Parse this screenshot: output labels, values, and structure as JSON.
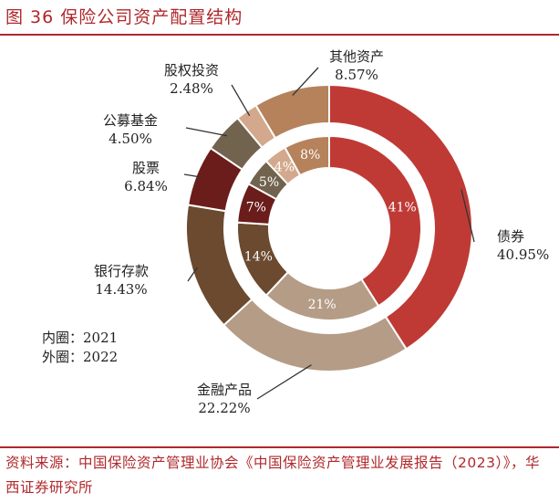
{
  "figure_title": "图 36 保险公司资产配置结构",
  "source_text": "资料来源：中国保险资产管理业协会《中国保险资产管理业发展报告（2023）》，华西证券研究所",
  "inner_note": "内圈：2021",
  "outer_note": "外圈：2022",
  "chart_data": {
    "type": "pie",
    "style": "donut",
    "rings": [
      {
        "name": "2021",
        "position": "inner"
      },
      {
        "name": "2022",
        "position": "outer"
      }
    ],
    "categories": [
      "债券",
      "金融产品",
      "银行存款",
      "股票",
      "公募基金",
      "股权投资",
      "其他资产"
    ],
    "colors": [
      "#bf3a35",
      "#b49c87",
      "#6b4a30",
      "#6a1d1b",
      "#72634e",
      "#d3a88c",
      "#b5825b"
    ],
    "series": [
      {
        "name": "2021",
        "values": [
          41,
          21,
          14,
          7,
          5,
          4,
          8
        ],
        "labels": [
          "41%",
          "21%",
          "14%",
          "7%",
          "5%",
          "4%",
          "8%"
        ]
      },
      {
        "name": "2022",
        "values": [
          40.95,
          22.22,
          14.43,
          6.84,
          4.5,
          2.48,
          8.57
        ],
        "labels": [
          "40.95%",
          "22.22%",
          "14.43%",
          "6.84%",
          "4.50%",
          "2.48%",
          "8.57%"
        ]
      }
    ]
  }
}
